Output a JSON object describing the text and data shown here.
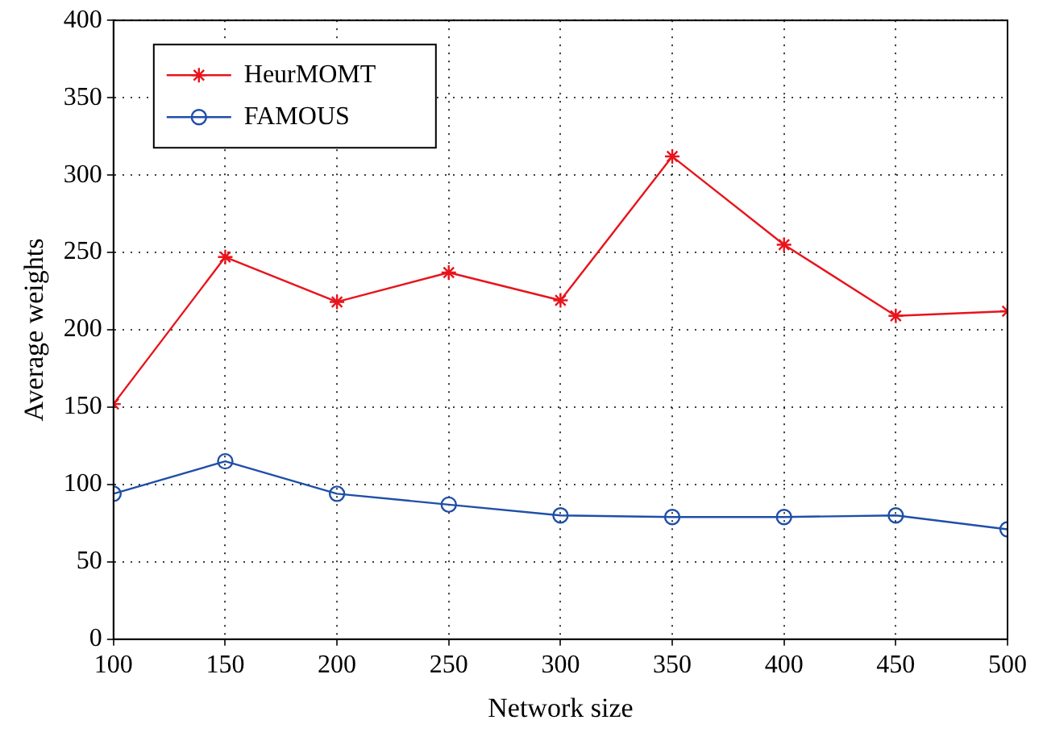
{
  "chart_data": {
    "type": "line",
    "xlabel": "Network size",
    "ylabel": "Average weights",
    "x": [
      100,
      150,
      200,
      250,
      300,
      350,
      400,
      450,
      500
    ],
    "series": [
      {
        "name": "HeurMOMT",
        "color": "#e8141c",
        "marker": "cross",
        "values": [
          152,
          247,
          218,
          237,
          219,
          312,
          255,
          209,
          212
        ]
      },
      {
        "name": "FAMOUS",
        "color": "#1f4fa8",
        "marker": "circle",
        "values": [
          94,
          115,
          94,
          87,
          80,
          79,
          79,
          80,
          71
        ]
      }
    ],
    "xlim": [
      100,
      500
    ],
    "xticks": [
      100,
      150,
      200,
      250,
      300,
      350,
      400,
      450,
      500
    ],
    "ylim": [
      0,
      400
    ],
    "yticks": [
      0,
      50,
      100,
      150,
      200,
      250,
      300,
      350,
      400
    ],
    "grid": true,
    "legend": "top left",
    "line_style": "solid"
  }
}
